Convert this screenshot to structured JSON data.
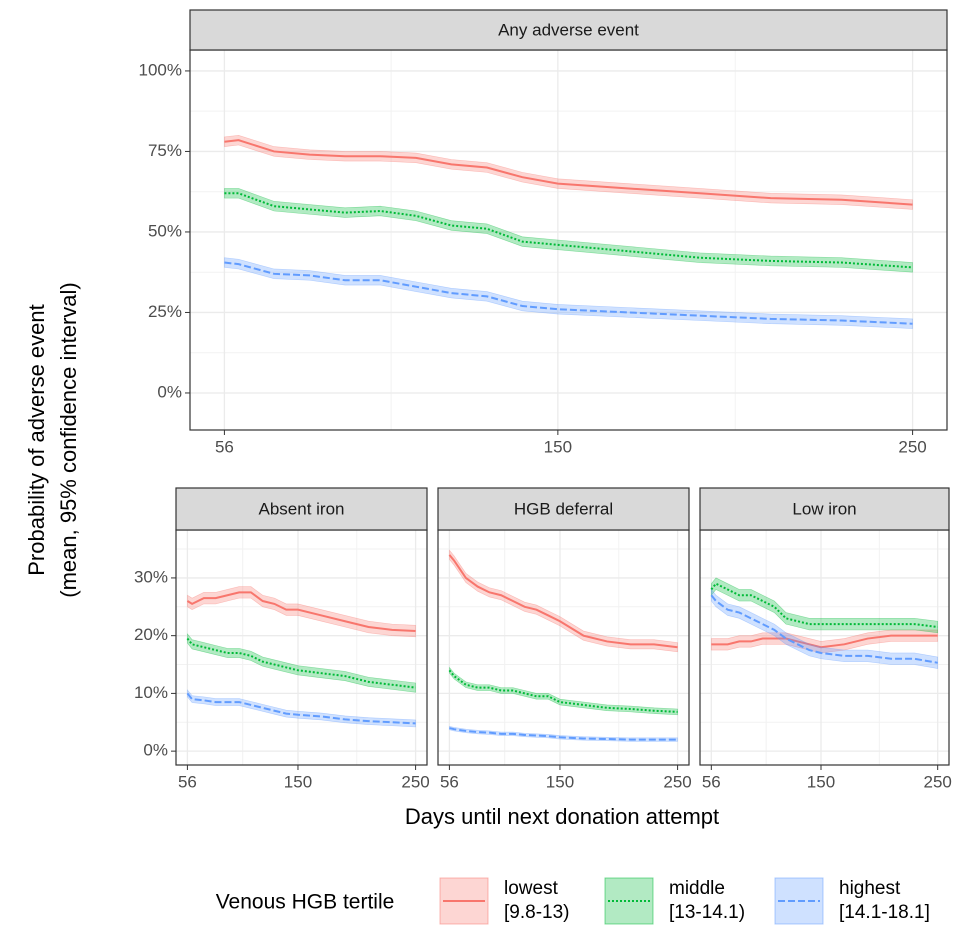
{
  "y_label": [
    "Probability of adverse event",
    "(mean, 95% confidence interval)"
  ],
  "x_label": "Days until next donation attempt",
  "legend": {
    "title": "Venous HGB tertile",
    "items": [
      {
        "name": "lowest",
        "range": "[9.8-13)",
        "color": "#F8766D",
        "dash": "none"
      },
      {
        "name": "middle",
        "range": "[13-14.1)",
        "color": "#00BA38",
        "dash": "2,2"
      },
      {
        "name": "highest",
        "range": "[14.1-18.1]",
        "color": "#619CFF",
        "dash": "7,3"
      }
    ]
  },
  "chart_data": [
    {
      "type": "line",
      "title": "Any adverse event",
      "x": [
        56,
        60,
        70,
        80,
        90,
        100,
        110,
        120,
        130,
        140,
        150,
        170,
        190,
        210,
        230,
        250
      ],
      "xlim": [
        46.3,
        259.7
      ],
      "xticks": [
        56,
        150,
        250
      ],
      "minor_xticks": [
        103,
        200
      ],
      "ylim": [
        -11.5,
        106.5
      ],
      "yticks": [
        {
          "value": 0,
          "label": "0%"
        },
        {
          "value": 25,
          "label": "25%"
        },
        {
          "value": 50,
          "label": "50%"
        },
        {
          "value": 75,
          "label": "75%"
        },
        {
          "value": 100,
          "label": "100%"
        }
      ],
      "minor_yticks": [
        12.5,
        37.5,
        62.5,
        87.5
      ],
      "grid": true,
      "series": [
        {
          "color": "#F8766D",
          "dash": "none",
          "ci": 1.5,
          "values": [
            78,
            78.5,
            75,
            74,
            73.5,
            73.5,
            73,
            71,
            70,
            67,
            65,
            63.5,
            62,
            60.5,
            60,
            58.5
          ]
        },
        {
          "color": "#00BA38",
          "dash": "2,2",
          "ci": 1.5,
          "values": [
            62,
            62,
            58,
            57,
            56,
            56.5,
            55,
            52,
            51,
            47,
            46,
            44,
            42,
            41,
            40.5,
            39
          ]
        },
        {
          "color": "#619CFF",
          "dash": "7,3",
          "ci": 1.5,
          "values": [
            40.5,
            40,
            37,
            36.5,
            35,
            35,
            33,
            31,
            30,
            27,
            26,
            25,
            24,
            23,
            22.5,
            21.5
          ]
        }
      ]
    },
    {
      "type": "line",
      "title": "Absent iron",
      "x": [
        56,
        60,
        70,
        80,
        90,
        100,
        110,
        120,
        130,
        140,
        150,
        170,
        190,
        210,
        230,
        250
      ],
      "xlim": [
        46.3,
        259.7
      ],
      "xticks": [
        56,
        150,
        250
      ],
      "minor_xticks": [
        103,
        200
      ],
      "ylim": [
        -2.4,
        38.3
      ],
      "yticks": [
        {
          "value": 0,
          "label": "0%"
        },
        {
          "value": 10,
          "label": "10%"
        },
        {
          "value": 20,
          "label": "20%"
        },
        {
          "value": 30,
          "label": "30%"
        }
      ],
      "minor_yticks": [
        5,
        15,
        25,
        35
      ],
      "grid": true,
      "series": [
        {
          "color": "#F8766D",
          "dash": "none",
          "ci": 1,
          "values": [
            26,
            25.5,
            26.5,
            26.5,
            27,
            27.5,
            27.5,
            26,
            25.5,
            24.5,
            24.5,
            23.5,
            22.5,
            21.5,
            21,
            20.8
          ]
        },
        {
          "color": "#00BA38",
          "dash": "2,2",
          "ci": 0.8,
          "values": [
            19.5,
            18.5,
            18,
            17.5,
            17,
            17,
            16.5,
            15.5,
            15,
            14.5,
            14,
            13.5,
            13,
            12,
            11.5,
            11
          ]
        },
        {
          "color": "#619CFF",
          "dash": "7,3",
          "ci": 0.6,
          "values": [
            10,
            9,
            8.8,
            8.5,
            8.5,
            8.5,
            8,
            7.5,
            7,
            6.5,
            6.3,
            6,
            5.5,
            5.2,
            5,
            4.8
          ]
        }
      ]
    },
    {
      "type": "line",
      "title": "HGB deferral",
      "x": [
        56,
        60,
        70,
        80,
        90,
        100,
        110,
        120,
        130,
        140,
        150,
        170,
        190,
        210,
        230,
        250
      ],
      "xlim": [
        46.3,
        259.7
      ],
      "xticks": [
        56,
        150,
        250
      ],
      "minor_xticks": [
        103,
        200
      ],
      "ylim": [
        -2.4,
        38.3
      ],
      "yticks": [
        0,
        10,
        20,
        30
      ],
      "minor_yticks": [
        5,
        15,
        25,
        35
      ],
      "grid": true,
      "series": [
        {
          "color": "#F8766D",
          "dash": "none",
          "ci": 0.8,
          "values": [
            34,
            33,
            30,
            28.5,
            27.5,
            27,
            26,
            25,
            24.5,
            23.5,
            22.5,
            20,
            19,
            18.5,
            18.5,
            18
          ]
        },
        {
          "color": "#00BA38",
          "dash": "2,2",
          "ci": 0.5,
          "values": [
            14,
            13,
            11.5,
            11,
            11,
            10.5,
            10.5,
            10,
            9.5,
            9.5,
            8.5,
            8,
            7.5,
            7.3,
            7,
            6.8
          ]
        },
        {
          "color": "#619CFF",
          "dash": "7,3",
          "ci": 0.3,
          "values": [
            4,
            3.8,
            3.5,
            3.3,
            3.2,
            3,
            3,
            2.8,
            2.7,
            2.6,
            2.4,
            2.2,
            2.1,
            2,
            2,
            2
          ]
        }
      ]
    },
    {
      "type": "line",
      "title": "Low iron",
      "x": [
        56,
        60,
        70,
        80,
        90,
        100,
        110,
        120,
        130,
        140,
        150,
        170,
        190,
        210,
        230,
        250
      ],
      "xlim": [
        46.3,
        259.7
      ],
      "xticks": [
        56,
        150,
        250
      ],
      "minor_xticks": [
        103,
        200
      ],
      "ylim": [
        -2.4,
        38.3
      ],
      "yticks": [
        0,
        10,
        20,
        30
      ],
      "minor_yticks": [
        5,
        15,
        25,
        35
      ],
      "grid": true,
      "series": [
        {
          "color": "#F8766D",
          "dash": "none",
          "ci": 1,
          "values": [
            18.5,
            18.5,
            18.5,
            19,
            19,
            19.5,
            19.5,
            19.5,
            19,
            18.5,
            18,
            18.5,
            19.5,
            20,
            20,
            20
          ]
        },
        {
          "color": "#00BA38",
          "dash": "2,2",
          "ci": 1,
          "values": [
            28,
            29,
            28,
            27,
            27,
            26,
            25,
            23,
            22.5,
            22,
            22,
            22,
            22,
            22,
            22,
            21.5
          ]
        },
        {
          "color": "#619CFF",
          "dash": "7,3",
          "ci": 1,
          "values": [
            27,
            26,
            24.5,
            24,
            23,
            22,
            21,
            19.5,
            18.5,
            17.5,
            17,
            16.5,
            16.5,
            16,
            16,
            15.3
          ]
        }
      ]
    }
  ]
}
